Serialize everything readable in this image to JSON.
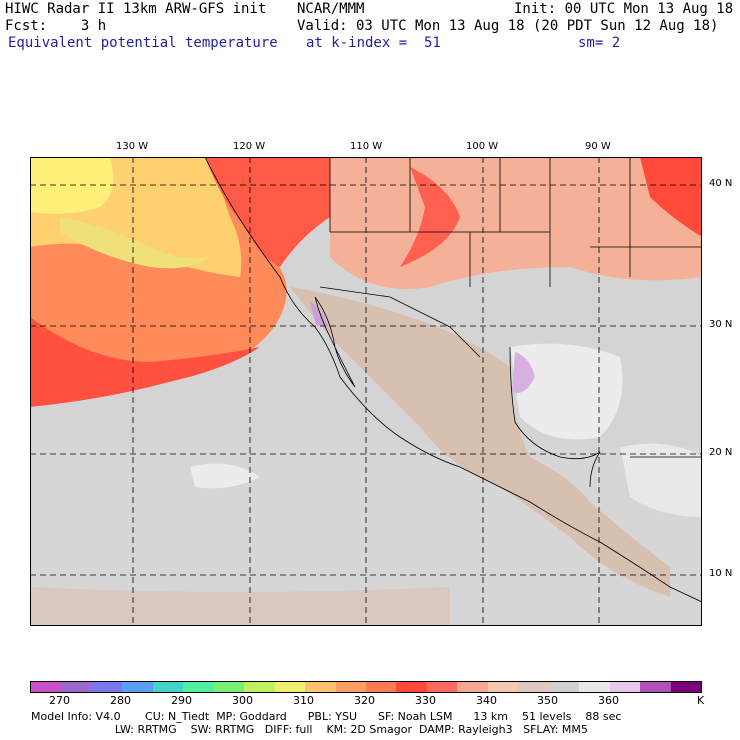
{
  "header": {
    "line1_left": "HIWC Radar II 13km ARW-GFS init",
    "line1_mid": "NCAR/MMM",
    "line1_right": "Init: 00 UTC Mon 13 Aug 18",
    "line2_left": "Fcst:    3 h",
    "line2_right": "Valid: 03 UTC Mon 13 Aug 18 (20 PDT Sun 12 Aug 18)",
    "line3_left": "Equivalent potential temperature",
    "line3_mid": "at k-index =  51",
    "line3_right": "sm= 2"
  },
  "map": {
    "lon_labels": [
      "130 W",
      "120 W",
      "110 W",
      "100 W",
      "90 W"
    ],
    "lat_labels": [
      "40 N",
      "30 N",
      "20 N",
      "10 N"
    ],
    "colors": {
      "ocean_cool": "#d8d8d8",
      "ocean_gray": "#cfcfcf",
      "warm_light": "#f5c49a",
      "warm_mid": "#ff7a55",
      "warm_hot": "#ff4a3a",
      "yellow": "#fff07a",
      "orange": "#ffc070",
      "tan": "#e0c8b8",
      "lilac": "#d8b0e0",
      "border": "#000000"
    }
  },
  "colorbar": {
    "colors": [
      "#c850c8",
      "#9a6ad0",
      "#7a78ee",
      "#5aa0f0",
      "#46d2c8",
      "#50f0a0",
      "#78f078",
      "#c0f060",
      "#f0f070",
      "#ffc070",
      "#ffa060",
      "#ff7a55",
      "#ff4a3a",
      "#ff6a60",
      "#f5a890",
      "#f5c8b0",
      "#dfc8c0",
      "#d0d0d0",
      "#e8e8e8",
      "#e8c8ea",
      "#b050b8",
      "#7a007a"
    ],
    "labels": [
      "270",
      "280",
      "290",
      "300",
      "310",
      "320",
      "330",
      "340",
      "350",
      "360"
    ],
    "unit": "K"
  },
  "footer": {
    "line1": "Model Info: V4.0       CU: N_Tiedt  MP: Goddard      PBL: YSU      SF: Noah LSM      13 km    51 levels    88 sec",
    "line2": "                        LW: RRTMG    SW: RRTMG   DIFF: full    KM: 2D Smagor  DAMP: Rayleigh3   SFLAY: MM5"
  }
}
